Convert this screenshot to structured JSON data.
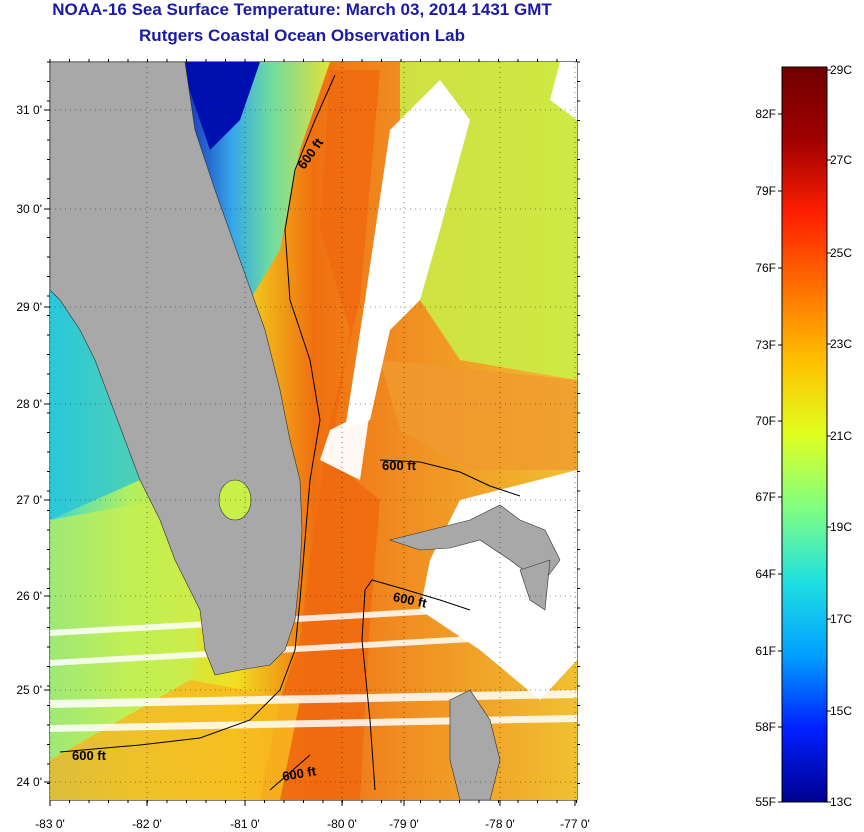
{
  "title": "NOAA-16 Sea Surface Temperature:  March 03, 2014 1431 GMT",
  "subtitle": "Rutgers Coastal Ocean Observation Lab",
  "map": {
    "lon_labels": [
      "-83 0'",
      "-82 0'",
      "-81 0'",
      "-80 0'",
      "-79 0'",
      "-78 0'",
      "-77 0'"
    ],
    "lat_labels": [
      "31 0'",
      "30 0'",
      "29 0'",
      "28 0'",
      "27 0'",
      "26 0'",
      "25 0'",
      "24 0'"
    ],
    "contour_labels": [
      "600 ft",
      "600 ft",
      "600 ft",
      "600 ft",
      "600 ft"
    ],
    "land_color": "#a8a8a8",
    "contour_color": "#000000"
  },
  "colorbar": {
    "celsius_labels": [
      "29C",
      "27C",
      "25C",
      "23C",
      "21C",
      "19C",
      "17C",
      "15C",
      "13C"
    ],
    "fahrenheit_labels": [
      "82F",
      "79F",
      "76F",
      "73F",
      "70F",
      "67F",
      "64F",
      "61F",
      "58F",
      "55F"
    ],
    "colors": [
      "#00008f",
      "#0020ff",
      "#00a0ff",
      "#20e0e0",
      "#80ff80",
      "#e0ff20",
      "#ffc000",
      "#ff7000",
      "#ff2000",
      "#a00000",
      "#700000"
    ]
  }
}
